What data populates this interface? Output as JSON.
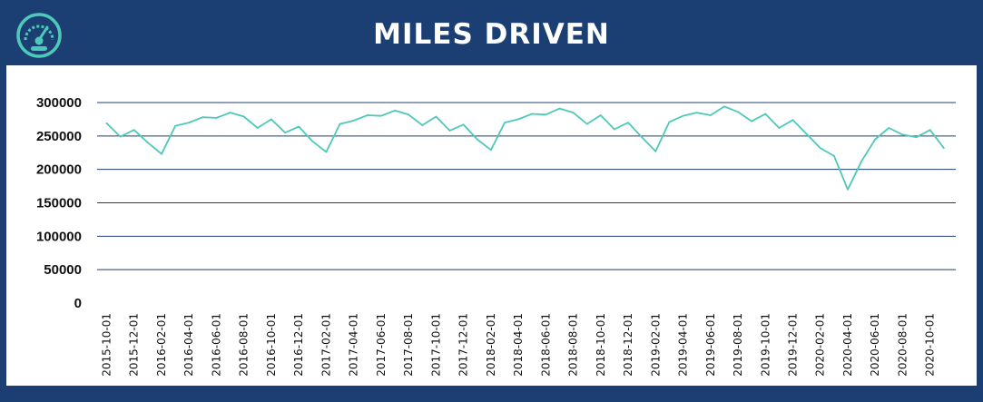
{
  "header": {
    "title": "MILES DRIVEN",
    "icon": "speedometer-icon",
    "accent_color": "#4ec9b9",
    "background_color": "#1b3f73"
  },
  "chart_data": {
    "type": "line",
    "title": "MILES DRIVEN",
    "xlabel": "",
    "ylabel": "",
    "ylim": [
      0,
      300000
    ],
    "yticks": [
      0,
      50000,
      100000,
      150000,
      200000,
      250000,
      300000
    ],
    "grid": true,
    "line_color": "#4ec9b9",
    "x": [
      "2015-10-01",
      "2015-11-01",
      "2015-12-01",
      "2016-01-01",
      "2016-02-01",
      "2016-03-01",
      "2016-04-01",
      "2016-05-01",
      "2016-06-01",
      "2016-07-01",
      "2016-08-01",
      "2016-09-01",
      "2016-10-01",
      "2016-11-01",
      "2016-12-01",
      "2017-01-01",
      "2017-02-01",
      "2017-03-01",
      "2017-04-01",
      "2017-05-01",
      "2017-06-01",
      "2017-07-01",
      "2017-08-01",
      "2017-09-01",
      "2017-10-01",
      "2017-11-01",
      "2017-12-01",
      "2018-01-01",
      "2018-02-01",
      "2018-03-01",
      "2018-04-01",
      "2018-05-01",
      "2018-06-01",
      "2018-07-01",
      "2018-08-01",
      "2018-09-01",
      "2018-10-01",
      "2018-11-01",
      "2018-12-01",
      "2019-01-01",
      "2019-02-01",
      "2019-03-01",
      "2019-04-01",
      "2019-05-01",
      "2019-06-01",
      "2019-07-01",
      "2019-08-01",
      "2019-09-01",
      "2019-10-01",
      "2019-11-01",
      "2019-12-01",
      "2020-01-01",
      "2020-02-01",
      "2020-03-01",
      "2020-04-01",
      "2020-05-01",
      "2020-06-01",
      "2020-07-01",
      "2020-08-01",
      "2020-09-01",
      "2020-10-01",
      "2020-11-01"
    ],
    "xticks": [
      "2015-10-01",
      "2015-12-01",
      "2016-02-01",
      "2016-04-01",
      "2016-06-01",
      "2016-08-01",
      "2016-10-01",
      "2016-12-01",
      "2017-02-01",
      "2017-04-01",
      "2017-06-01",
      "2017-08-01",
      "2017-10-01",
      "2017-12-01",
      "2018-02-01",
      "2018-04-01",
      "2018-06-01",
      "2018-08-01",
      "2018-10-01",
      "2018-12-01",
      "2019-02-01",
      "2019-04-01",
      "2019-06-01",
      "2019-08-01",
      "2019-10-01",
      "2019-12-01",
      "2020-02-01",
      "2020-04-01",
      "2020-06-01",
      "2020-08-01",
      "2020-10-01"
    ],
    "series": [
      {
        "values": [
          269000,
          249000,
          259000,
          240000,
          223000,
          265000,
          270000,
          278000,
          277000,
          285000,
          279000,
          262000,
          275000,
          255000,
          264000,
          242000,
          226000,
          268000,
          273000,
          281000,
          280000,
          288000,
          282000,
          266000,
          279000,
          258000,
          267000,
          245000,
          229000,
          270000,
          275000,
          283000,
          282000,
          291000,
          285000,
          268000,
          281000,
          260000,
          270000,
          248000,
          227000,
          271000,
          280000,
          285000,
          281000,
          294000,
          286000,
          272000,
          283000,
          262000,
          274000,
          253000,
          232000,
          220000,
          170000,
          212000,
          245000,
          262000,
          252000,
          248000,
          259000,
          232000
        ]
      }
    ]
  }
}
